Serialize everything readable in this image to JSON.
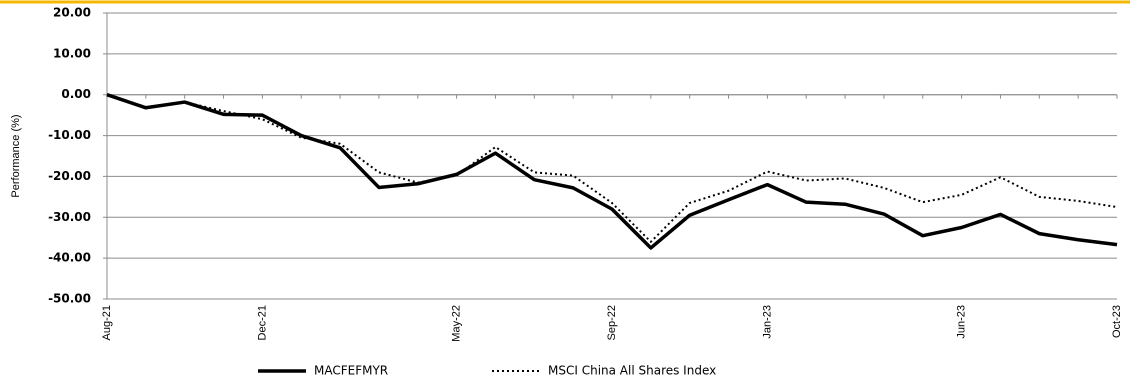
{
  "chart_data": {
    "type": "line",
    "y_label": "Performance (%)",
    "categories": [
      "Aug-21",
      null,
      null,
      null,
      "Dec-21",
      null,
      null,
      null,
      null,
      "May-22",
      null,
      null,
      null,
      "Sep-22",
      null,
      null,
      null,
      "Jan-23",
      null,
      null,
      null,
      null,
      "Jun-23",
      null,
      null,
      null,
      "Oct-23"
    ],
    "series": [
      {
        "name": "MACFEFMYR",
        "color": "#000000",
        "style": "solid",
        "values": [
          0,
          -3.2,
          -1.8,
          -4.8,
          -5.0,
          -10.0,
          -13.0,
          -22.7,
          -21.8,
          -19.5,
          -14.3,
          -20.8,
          -22.8,
          -28.0,
          -37.5,
          -29.5,
          -25.7,
          -22.0,
          -26.3,
          -26.8,
          -29.2,
          -34.5,
          -32.5,
          -29.3,
          -34.0,
          -35.5,
          -36.7
        ]
      },
      {
        "name": "MSCI China All Shares Index",
        "color": "#000000",
        "style": "dotted",
        "values": [
          0,
          -3.0,
          -1.8,
          -4.0,
          -6.0,
          -10.5,
          -12.0,
          -19.0,
          -21.5,
          -19.8,
          -12.8,
          -19.0,
          -19.8,
          -26.5,
          -36.0,
          -26.5,
          -23.5,
          -18.8,
          -21.0,
          -20.5,
          -22.8,
          -26.3,
          -24.5,
          -20.2,
          -25.0,
          -26.0,
          -27.5
        ]
      }
    ],
    "ylim": [
      -50,
      20
    ],
    "yticks": [
      {
        "value": -50,
        "label": "-50.00"
      },
      {
        "value": -40,
        "label": "-40.00"
      },
      {
        "value": -30,
        "label": "-30.00"
      },
      {
        "value": -20,
        "label": "-20.00"
      },
      {
        "value": -10,
        "label": "-10.00"
      },
      {
        "value": 0,
        "label": "0.00"
      },
      {
        "value": 10,
        "label": "10.00"
      },
      {
        "value": 20,
        "label": "20.00"
      }
    ],
    "grid": true,
    "legend": "bottom"
  }
}
